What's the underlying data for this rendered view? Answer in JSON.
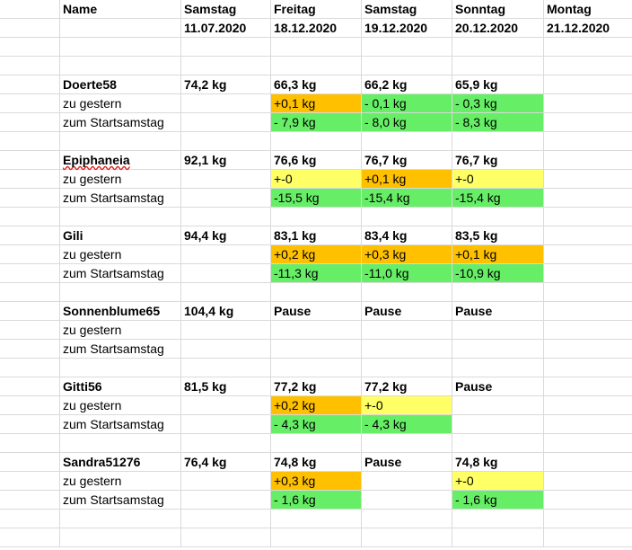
{
  "header": {
    "name_label": "Name",
    "columns": [
      {
        "day": "Samstag",
        "date": "11.07.2020"
      },
      {
        "day": "Freitag",
        "date": "18.12.2020"
      },
      {
        "day": "Samstag",
        "date": "19.12.2020"
      },
      {
        "day": "Sonntag",
        "date": "20.12.2020"
      },
      {
        "day": "Montag",
        "date": "21.12.2020"
      }
    ]
  },
  "labels": {
    "yesterday": "zu gestern",
    "start": "zum Startsamstag"
  },
  "colors": {
    "increase": "#ffc000",
    "decrease": "#66ee66",
    "unchanged": "#ffff66"
  },
  "participants": [
    {
      "name": "Doerte58",
      "start_weight": "74,2 kg",
      "weights": [
        "66,3 kg",
        "66,2 kg",
        "65,9 kg",
        ""
      ],
      "yesterday": [
        "+0,1 kg",
        "- 0,1 kg",
        "- 0,3 kg",
        ""
      ],
      "to_start": [
        "- 7,9 kg",
        "- 8,0 kg",
        "- 8,3 kg",
        ""
      ]
    },
    {
      "name": "Epiphaneia",
      "start_weight": "92,1 kg",
      "weights": [
        "76,6 kg",
        "76,7 kg",
        "76,7 kg",
        ""
      ],
      "yesterday": [
        "+-0",
        "+0,1 kg",
        "+-0",
        ""
      ],
      "to_start": [
        "-15,5 kg",
        "-15,4 kg",
        "-15,4 kg",
        ""
      ]
    },
    {
      "name": "Gili",
      "start_weight": "94,4 kg",
      "weights": [
        "83,1 kg",
        "83,4 kg",
        "83,5 kg",
        ""
      ],
      "yesterday": [
        "+0,2 kg",
        "+0,3 kg",
        "+0,1 kg",
        ""
      ],
      "to_start": [
        "-11,3 kg",
        "-11,0 kg",
        "-10,9 kg",
        ""
      ]
    },
    {
      "name": "Sonnenblume65",
      "start_weight": "104,4 kg",
      "weights": [
        "Pause",
        "Pause",
        "Pause",
        ""
      ],
      "yesterday": [
        "",
        "",
        "",
        ""
      ],
      "to_start": [
        "",
        "",
        "",
        ""
      ]
    },
    {
      "name": "Gitti56",
      "start_weight": "81,5 kg",
      "weights": [
        "77,2 kg",
        "77,2 kg",
        "Pause",
        ""
      ],
      "yesterday": [
        "+0,2 kg",
        "+-0",
        "",
        ""
      ],
      "to_start": [
        "- 4,3 kg",
        "- 4,3 kg",
        "",
        ""
      ]
    },
    {
      "name": "Sandra51276",
      "start_weight": "76,4 kg",
      "weights": [
        "74,8 kg",
        "Pause",
        "74,8 kg",
        ""
      ],
      "yesterday": [
        "+0,3 kg",
        "",
        "+-0",
        ""
      ],
      "to_start": [
        "- 1,6 kg",
        "",
        "- 1,6 kg",
        ""
      ]
    }
  ]
}
